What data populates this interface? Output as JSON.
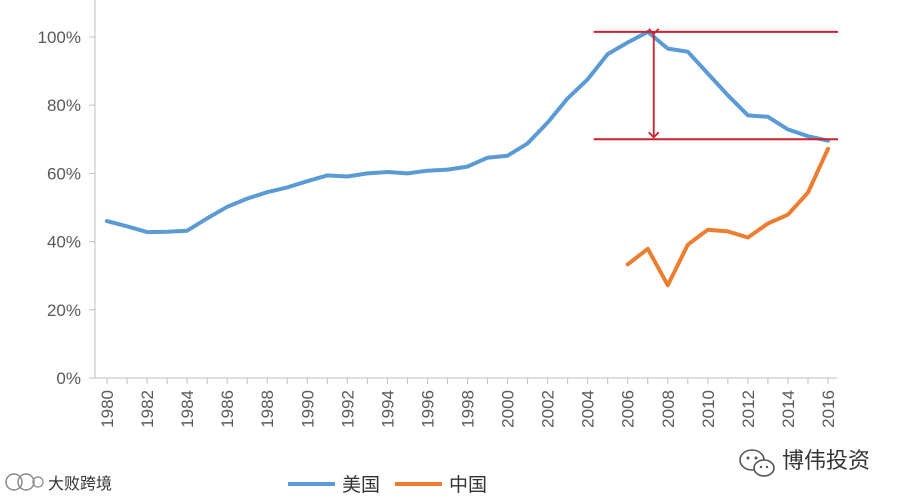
{
  "chart_data": {
    "type": "line",
    "title": "",
    "xlabel": "",
    "ylabel": "",
    "x_ticks": [
      "1980",
      "1982",
      "1984",
      "1986",
      "1988",
      "1990",
      "1992",
      "1994",
      "1996",
      "1998",
      "2000",
      "2002",
      "2004",
      "2006",
      "2008",
      "2010",
      "2012",
      "2014",
      "2016"
    ],
    "y_ticks": [
      "0%",
      "20%",
      "40%",
      "60%",
      "80%",
      "100%"
    ],
    "xlim": [
      1980,
      2016
    ],
    "ylim": [
      0,
      100
    ],
    "grid": false,
    "legend_position": "bottom",
    "series": [
      {
        "name": "美国",
        "color": "#5B9BD5",
        "points": [
          [
            1980,
            46
          ],
          [
            1981,
            44.5
          ],
          [
            1982,
            42.8
          ],
          [
            1983,
            42.9
          ],
          [
            1984,
            43.2
          ],
          [
            1985,
            46.8
          ],
          [
            1986,
            50.2
          ],
          [
            1987,
            52.6
          ],
          [
            1988,
            54.5
          ],
          [
            1989,
            55.9
          ],
          [
            1990,
            57.7
          ],
          [
            1991,
            59.4
          ],
          [
            1992,
            59.1
          ],
          [
            1993,
            60.0
          ],
          [
            1994,
            60.4
          ],
          [
            1995,
            60.0
          ],
          [
            1996,
            60.8
          ],
          [
            1997,
            61.1
          ],
          [
            1998,
            62.0
          ],
          [
            1999,
            64.6
          ],
          [
            2000,
            65.2
          ],
          [
            2001,
            68.8
          ],
          [
            2002,
            74.9
          ],
          [
            2003,
            82.0
          ],
          [
            2004,
            87.6
          ],
          [
            2005,
            95.0
          ],
          [
            2006,
            98.4
          ],
          [
            2007,
            101.5
          ],
          [
            2008,
            96.6
          ],
          [
            2009,
            95.7
          ],
          [
            2010,
            89.3
          ],
          [
            2011,
            82.9
          ],
          [
            2012,
            77.0
          ],
          [
            2013,
            76.6
          ],
          [
            2014,
            72.9
          ],
          [
            2015,
            70.9
          ],
          [
            2016,
            69.6
          ]
        ]
      },
      {
        "name": "中国",
        "color": "#ED7D31",
        "points": [
          [
            2006,
            33.3
          ],
          [
            2007,
            37.9
          ],
          [
            2008,
            27.2
          ],
          [
            2009,
            39.1
          ],
          [
            2010,
            43.5
          ],
          [
            2011,
            43.0
          ],
          [
            2012,
            41.2
          ],
          [
            2013,
            45.3
          ],
          [
            2014,
            47.9
          ],
          [
            2015,
            54.4
          ],
          [
            2016,
            67.2
          ]
        ]
      }
    ],
    "annotations": {
      "peak_line_value": 101.5,
      "trough_line_value": 70.0,
      "line_x_range": [
        2004.3,
        2016.5
      ],
      "arrow_x": 2007.3,
      "color": "#D0202E"
    }
  },
  "watermarks": {
    "left_text": "大败跨境",
    "left_logo": "ico-logo",
    "right_text": "博伟投资",
    "right_logo": "wechat-icon"
  }
}
